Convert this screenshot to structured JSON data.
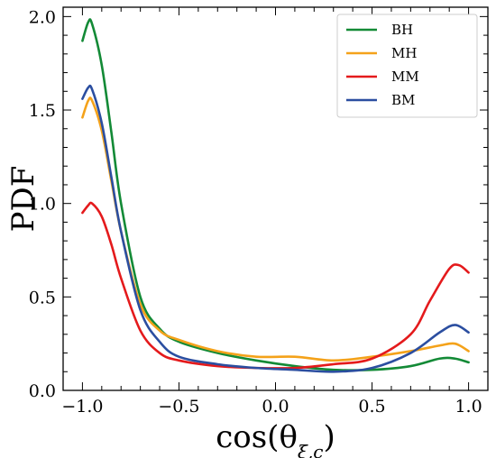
{
  "chart_data": {
    "type": "line",
    "title": "",
    "xlabel": "cos(θξ,c)",
    "ylabel": "PDF",
    "xlim": [
      -1.1,
      1.1
    ],
    "ylim": [
      0.0,
      2.05
    ],
    "x_ticks": [
      "−1.0",
      "−0.5",
      "0.0",
      "0.5",
      "1.0"
    ],
    "y_ticks": [
      "0.0",
      "0.5",
      "1.0",
      "1.5",
      "2.0"
    ],
    "x_tick_values": [
      -1.0,
      -0.5,
      0.0,
      0.5,
      1.0
    ],
    "y_tick_values": [
      0.0,
      0.5,
      1.0,
      1.5,
      2.0
    ],
    "grid": false,
    "legend_position": "top-right",
    "series": [
      {
        "name": "BH",
        "color": "#138a36",
        "x": [
          -1.0,
          -0.97,
          -0.95,
          -0.9,
          -0.85,
          -0.8,
          -0.7,
          -0.6,
          -0.5,
          -0.3,
          -0.1,
          0.1,
          0.3,
          0.5,
          0.7,
          0.85,
          0.93,
          1.0
        ],
        "y": [
          1.87,
          1.97,
          1.96,
          1.74,
          1.38,
          1.0,
          0.5,
          0.33,
          0.26,
          0.2,
          0.16,
          0.13,
          0.11,
          0.11,
          0.13,
          0.17,
          0.17,
          0.15
        ]
      },
      {
        "name": "MH",
        "color": "#f4a21a",
        "x": [
          -1.0,
          -0.97,
          -0.95,
          -0.9,
          -0.85,
          -0.8,
          -0.7,
          -0.6,
          -0.5,
          -0.3,
          -0.1,
          0.1,
          0.3,
          0.5,
          0.7,
          0.85,
          0.93,
          1.0
        ],
        "y": [
          1.46,
          1.55,
          1.55,
          1.39,
          1.12,
          0.85,
          0.46,
          0.32,
          0.27,
          0.21,
          0.18,
          0.18,
          0.16,
          0.18,
          0.21,
          0.24,
          0.25,
          0.21
        ]
      },
      {
        "name": "MM",
        "color": "#e41a1c",
        "x": [
          -1.0,
          -0.97,
          -0.95,
          -0.9,
          -0.85,
          -0.8,
          -0.7,
          -0.6,
          -0.5,
          -0.3,
          -0.1,
          0.1,
          0.3,
          0.5,
          0.7,
          0.8,
          0.9,
          0.95,
          1.0
        ],
        "y": [
          0.95,
          0.99,
          1.0,
          0.93,
          0.78,
          0.6,
          0.32,
          0.2,
          0.16,
          0.13,
          0.12,
          0.12,
          0.14,
          0.17,
          0.3,
          0.48,
          0.65,
          0.67,
          0.63
        ]
      },
      {
        "name": "BM",
        "color": "#2b4ea0",
        "x": [
          -1.0,
          -0.97,
          -0.95,
          -0.9,
          -0.85,
          -0.8,
          -0.7,
          -0.6,
          -0.5,
          -0.3,
          -0.1,
          0.1,
          0.3,
          0.5,
          0.7,
          0.85,
          0.93,
          1.0
        ],
        "y": [
          1.56,
          1.62,
          1.61,
          1.43,
          1.14,
          0.85,
          0.43,
          0.26,
          0.18,
          0.14,
          0.12,
          0.11,
          0.1,
          0.12,
          0.2,
          0.31,
          0.35,
          0.31
        ]
      }
    ]
  }
}
